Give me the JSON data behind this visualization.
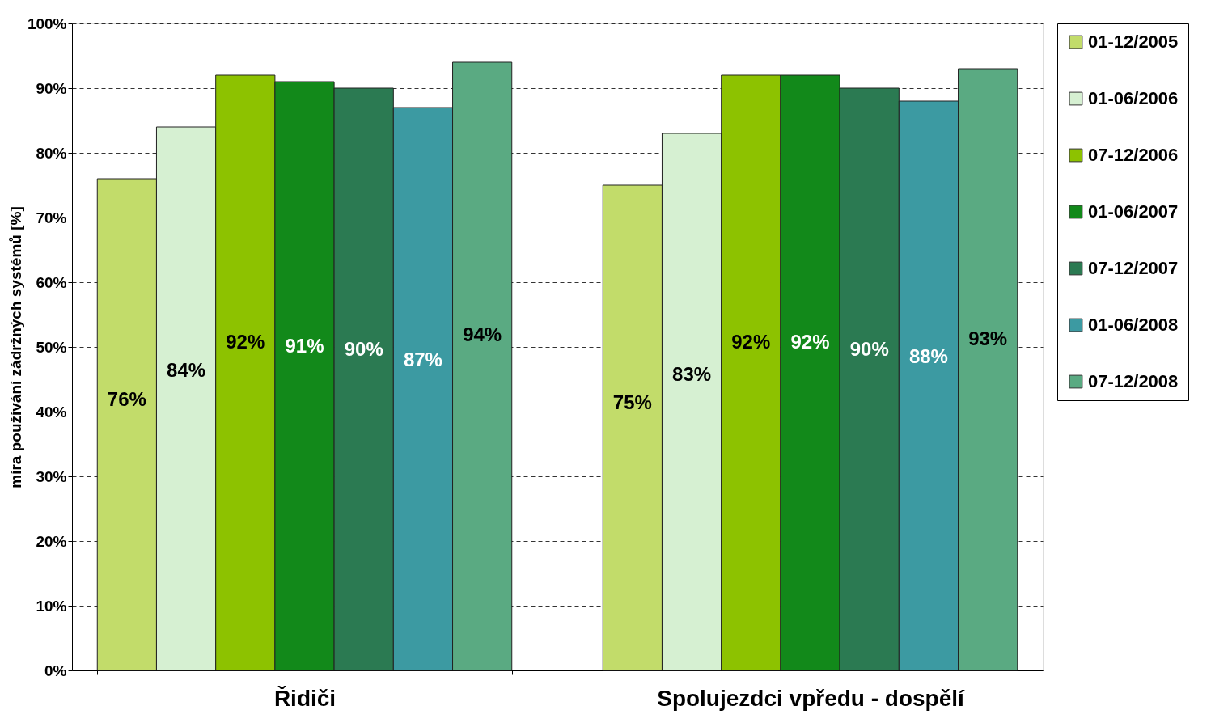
{
  "chart_data": {
    "type": "bar",
    "ylabel": "míra používání zádržných systémů [%]",
    "categories": [
      "Řidiči",
      "Spolujezdci vpředu - dospělí"
    ],
    "series": [
      {
        "name": "01-12/2005",
        "color": "#c2dc6a",
        "values": [
          76,
          75
        ],
        "value_labels": [
          "76%",
          "75%"
        ]
      },
      {
        "name": "01-06/2006",
        "color": "#d6f0d2",
        "values": [
          84,
          83
        ],
        "value_labels": [
          "84%",
          "83%"
        ]
      },
      {
        "name": "07-12/2006",
        "color": "#8dc200",
        "values": [
          92,
          92
        ],
        "value_labels": [
          "92%",
          "92%"
        ]
      },
      {
        "name": "01-06/2007",
        "color": "#12891a",
        "values": [
          91,
          92
        ],
        "value_labels": [
          "91%",
          "92%"
        ]
      },
      {
        "name": "07-12/2007",
        "color": "#2b7a52",
        "values": [
          90,
          90
        ],
        "value_labels": [
          "90%",
          "90%"
        ]
      },
      {
        "name": "01-06/2008",
        "color": "#3c9aa2",
        "values": [
          87,
          88
        ],
        "value_labels": [
          "87%",
          "88%"
        ]
      },
      {
        "name": "07-12/2008",
        "color": "#5aaa82",
        "values": [
          94,
          93
        ],
        "value_labels": [
          "94%",
          "93%"
        ]
      }
    ],
    "ylim": [
      0,
      100
    ],
    "yticks": [
      {
        "value": 0,
        "label": "0%"
      },
      {
        "value": 10,
        "label": "10%"
      },
      {
        "value": 20,
        "label": "20%"
      },
      {
        "value": 30,
        "label": "30%"
      },
      {
        "value": 40,
        "label": "40%"
      },
      {
        "value": 50,
        "label": "50%"
      },
      {
        "value": 60,
        "label": "60%"
      },
      {
        "value": 70,
        "label": "70%"
      },
      {
        "value": 80,
        "label": "80%"
      },
      {
        "value": 90,
        "label": "90%"
      },
      {
        "value": 100,
        "label": "100%"
      }
    ],
    "grid": "y",
    "legend": "right"
  }
}
